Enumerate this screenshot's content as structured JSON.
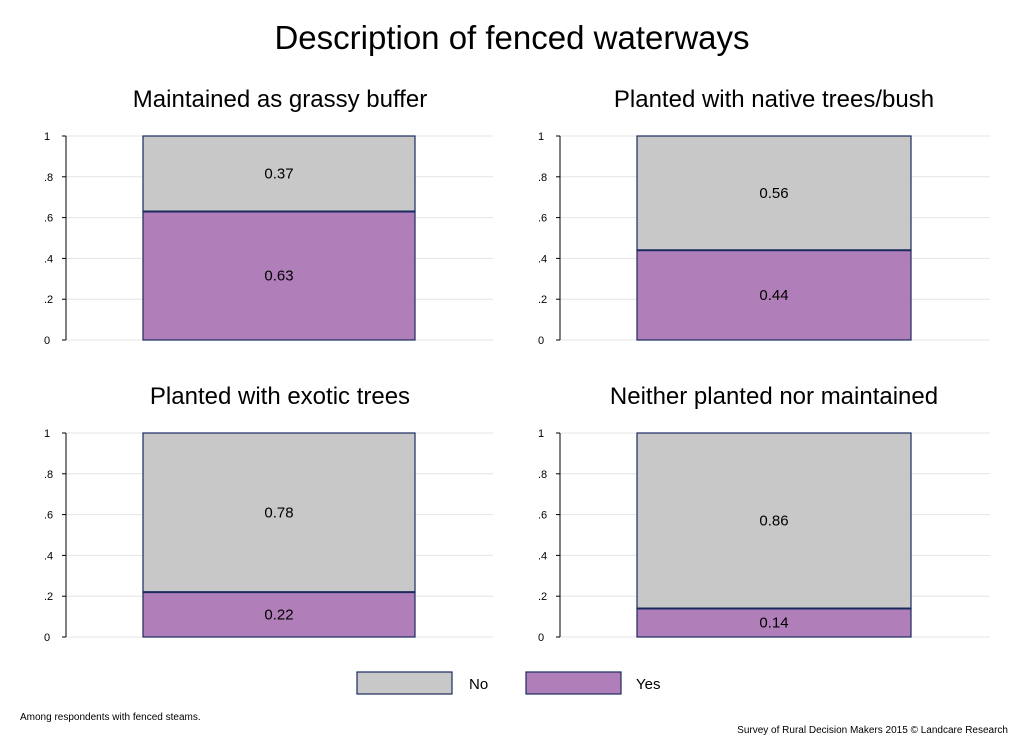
{
  "chart_data": {
    "type": "bar",
    "stacked": true,
    "title": "Description of fenced waterways",
    "ylim": [
      0,
      1
    ],
    "yticks": [
      0,
      0.2,
      0.4,
      0.6,
      0.8,
      1
    ],
    "ytick_labels": [
      "0",
      ".2",
      ".4",
      ".6",
      ".8",
      "1"
    ],
    "grid": true,
    "legend_position": "bottom-center",
    "colors": {
      "No": "#c8c8c8",
      "Yes": "#b07fb9",
      "outline": "#1a2a5e",
      "grid": "#e4e4e4"
    },
    "legend": [
      "No",
      "Yes"
    ],
    "panels": [
      {
        "title": "Maintained as grassy buffer",
        "series": [
          {
            "name": "Yes",
            "value": 0.63
          },
          {
            "name": "No",
            "value": 0.37
          }
        ]
      },
      {
        "title": "Planted with native trees/bush",
        "series": [
          {
            "name": "Yes",
            "value": 0.44
          },
          {
            "name": "No",
            "value": 0.56
          }
        ]
      },
      {
        "title": "Planted with exotic trees",
        "series": [
          {
            "name": "Yes",
            "value": 0.22
          },
          {
            "name": "No",
            "value": 0.78
          }
        ]
      },
      {
        "title": "Neither planted nor maintained",
        "series": [
          {
            "name": "Yes",
            "value": 0.14
          },
          {
            "name": "No",
            "value": 0.86
          }
        ]
      }
    ]
  },
  "footnote_left": "Among respondents with fenced steams.",
  "footnote_right": "Survey of Rural Decision Makers 2015 © Landcare Research"
}
